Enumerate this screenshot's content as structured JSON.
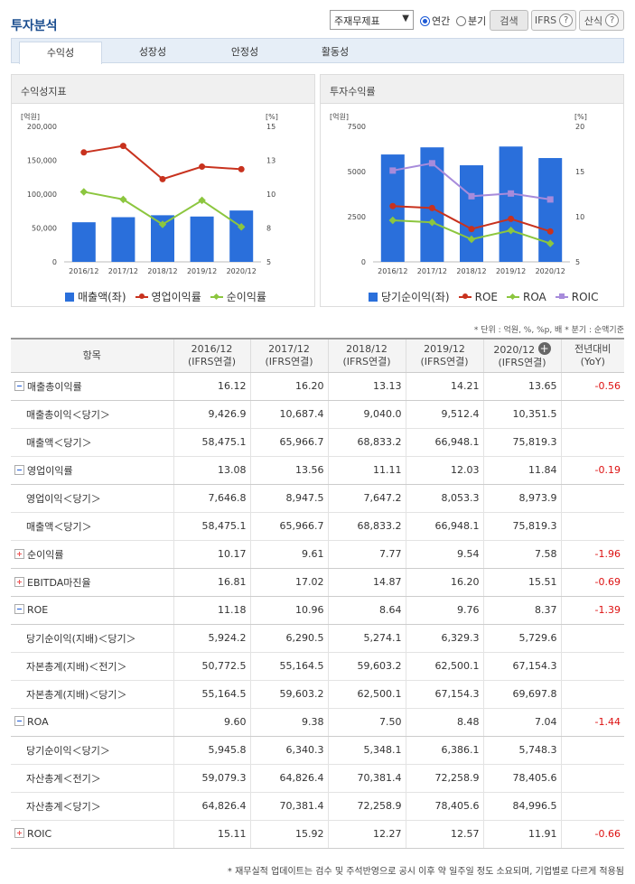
{
  "header": {
    "title": "투자분석",
    "select_value": "주재무제표",
    "radio_annual": "연간",
    "radio_quarter": "분기",
    "search_label": "검색",
    "ifrs_label": "IFRS",
    "calc_label": "산식"
  },
  "tabs": [
    "수익성",
    "성장성",
    "안정성",
    "활동성"
  ],
  "panels": {
    "left_title": "수익성지표",
    "right_title": "투자수익률"
  },
  "colors": {
    "bar": "#2a6fdb",
    "red": "#c8321e",
    "green": "#8cc63f",
    "purple": "#a78bdb"
  },
  "chart_data": [
    {
      "type": "bar+line",
      "title": "수익성지표",
      "categories": [
        "2016/12",
        "2017/12",
        "2018/12",
        "2019/12",
        "2020/12"
      ],
      "left_axis": {
        "unit": "[억원]",
        "ylim": [
          0,
          200000
        ],
        "ticks": [
          "0",
          "50,000",
          "100,000",
          "150,000",
          "200,000"
        ]
      },
      "right_axis": {
        "unit": "[%]",
        "ylim": [
          5,
          15
        ],
        "ticks": [
          "5",
          "8",
          "10",
          "13",
          "15"
        ]
      },
      "series": [
        {
          "name": "매출액(좌)",
          "kind": "bar",
          "axis": "left",
          "values": [
            58475.1,
            65966.7,
            68833.2,
            66948.1,
            75819.3
          ]
        },
        {
          "name": "영업이익률",
          "kind": "line",
          "axis": "right",
          "values": [
            13.08,
            13.56,
            11.11,
            12.03,
            11.84
          ]
        },
        {
          "name": "순이익률",
          "kind": "line",
          "axis": "right",
          "values": [
            10.17,
            9.61,
            7.77,
            9.54,
            7.58
          ]
        }
      ]
    },
    {
      "type": "bar+line",
      "title": "투자수익률",
      "categories": [
        "2016/12",
        "2017/12",
        "2018/12",
        "2019/12",
        "2020/12"
      ],
      "left_axis": {
        "unit": "[억원]",
        "ylim": [
          0,
          7500
        ],
        "ticks": [
          "0",
          "2500",
          "5000",
          "7500"
        ]
      },
      "right_axis": {
        "unit": "[%]",
        "ylim": [
          5,
          20
        ],
        "ticks": [
          "5",
          "10",
          "15",
          "20"
        ]
      },
      "series": [
        {
          "name": "당기순이익(좌)",
          "kind": "bar",
          "axis": "left",
          "values": [
            5945.8,
            6340.3,
            5348.1,
            6386.1,
            5748.3
          ]
        },
        {
          "name": "ROE",
          "kind": "line",
          "axis": "right",
          "values": [
            11.18,
            10.96,
            8.64,
            9.76,
            8.37
          ]
        },
        {
          "name": "ROA",
          "kind": "line",
          "axis": "right",
          "values": [
            9.6,
            9.38,
            7.5,
            8.48,
            7.04
          ]
        },
        {
          "name": "ROIC",
          "kind": "line",
          "axis": "right",
          "values": [
            15.11,
            15.92,
            12.27,
            12.57,
            11.91
          ]
        }
      ]
    }
  ],
  "unit_note": "* 단위 : 억원, %, %p, 배   * 분기 : 순액기준",
  "table": {
    "header_item": "항목",
    "columns": [
      [
        "2016/12",
        "(IFRS연결)"
      ],
      [
        "2017/12",
        "(IFRS연결)"
      ],
      [
        "2018/12",
        "(IFRS연결)"
      ],
      [
        "2019/12",
        "(IFRS연결)"
      ],
      [
        "2020/12",
        "(IFRS연결)"
      ]
    ],
    "yoy_header": [
      "전년대비",
      "(YoY)"
    ],
    "rows": [
      {
        "label": "매출총이익률",
        "level": 0,
        "toggle": "minus",
        "values": [
          "16.12",
          "16.20",
          "13.13",
          "14.21",
          "13.65"
        ],
        "yoy": "-0.56"
      },
      {
        "label": "매출총이익＜당기＞",
        "level": 1,
        "values": [
          "9,426.9",
          "10,687.4",
          "9,040.0",
          "9,512.4",
          "10,351.5"
        ],
        "yoy": ""
      },
      {
        "label": "매출액＜당기＞",
        "level": 1,
        "values": [
          "58,475.1",
          "65,966.7",
          "68,833.2",
          "66,948.1",
          "75,819.3"
        ],
        "yoy": ""
      },
      {
        "label": "영업이익률",
        "level": 0,
        "toggle": "minus",
        "values": [
          "13.08",
          "13.56",
          "11.11",
          "12.03",
          "11.84"
        ],
        "yoy": "-0.19"
      },
      {
        "label": "영업이익＜당기＞",
        "level": 1,
        "values": [
          "7,646.8",
          "8,947.5",
          "7,647.2",
          "8,053.3",
          "8,973.9"
        ],
        "yoy": ""
      },
      {
        "label": "매출액＜당기＞",
        "level": 1,
        "values": [
          "58,475.1",
          "65,966.7",
          "68,833.2",
          "66,948.1",
          "75,819.3"
        ],
        "yoy": ""
      },
      {
        "label": "순이익률",
        "level": 0,
        "toggle": "plus",
        "values": [
          "10.17",
          "9.61",
          "7.77",
          "9.54",
          "7.58"
        ],
        "yoy": "-1.96"
      },
      {
        "label": "EBITDA마진율",
        "level": 0,
        "toggle": "plus",
        "values": [
          "16.81",
          "17.02",
          "14.87",
          "16.20",
          "15.51"
        ],
        "yoy": "-0.69"
      },
      {
        "label": "ROE",
        "level": 0,
        "toggle": "minus",
        "values": [
          "11.18",
          "10.96",
          "8.64",
          "9.76",
          "8.37"
        ],
        "yoy": "-1.39"
      },
      {
        "label": "당기순이익(지배)＜당기＞",
        "level": 1,
        "values": [
          "5,924.2",
          "6,290.5",
          "5,274.1",
          "6,329.3",
          "5,729.6"
        ],
        "yoy": ""
      },
      {
        "label": "자본총계(지배)＜전기＞",
        "level": 1,
        "values": [
          "50,772.5",
          "55,164.5",
          "59,603.2",
          "62,500.1",
          "67,154.3"
        ],
        "yoy": ""
      },
      {
        "label": "자본총계(지배)＜당기＞",
        "level": 1,
        "values": [
          "55,164.5",
          "59,603.2",
          "62,500.1",
          "67,154.3",
          "69,697.8"
        ],
        "yoy": ""
      },
      {
        "label": "ROA",
        "level": 0,
        "toggle": "minus",
        "values": [
          "9.60",
          "9.38",
          "7.50",
          "8.48",
          "7.04"
        ],
        "yoy": "-1.44"
      },
      {
        "label": "당기순이익＜당기＞",
        "level": 1,
        "values": [
          "5,945.8",
          "6,340.3",
          "5,348.1",
          "6,386.1",
          "5,748.3"
        ],
        "yoy": ""
      },
      {
        "label": "자산총계＜전기＞",
        "level": 1,
        "values": [
          "59,079.3",
          "64,826.4",
          "70,381.4",
          "72,258.9",
          "78,405.6"
        ],
        "yoy": ""
      },
      {
        "label": "자산총계＜당기＞",
        "level": 1,
        "values": [
          "64,826.4",
          "70,381.4",
          "72,258.9",
          "78,405.6",
          "84,996.5"
        ],
        "yoy": ""
      },
      {
        "label": "ROIC",
        "level": 0,
        "toggle": "plus",
        "values": [
          "15.11",
          "15.92",
          "12.27",
          "12.57",
          "11.91"
        ],
        "yoy": "-0.66"
      }
    ]
  },
  "footnote": "* 재무실적 업데이트는 검수 및 주석반영으로 공시 이후 약 일주일 정도 소요되며, 기업별로 다르게 적용됨"
}
